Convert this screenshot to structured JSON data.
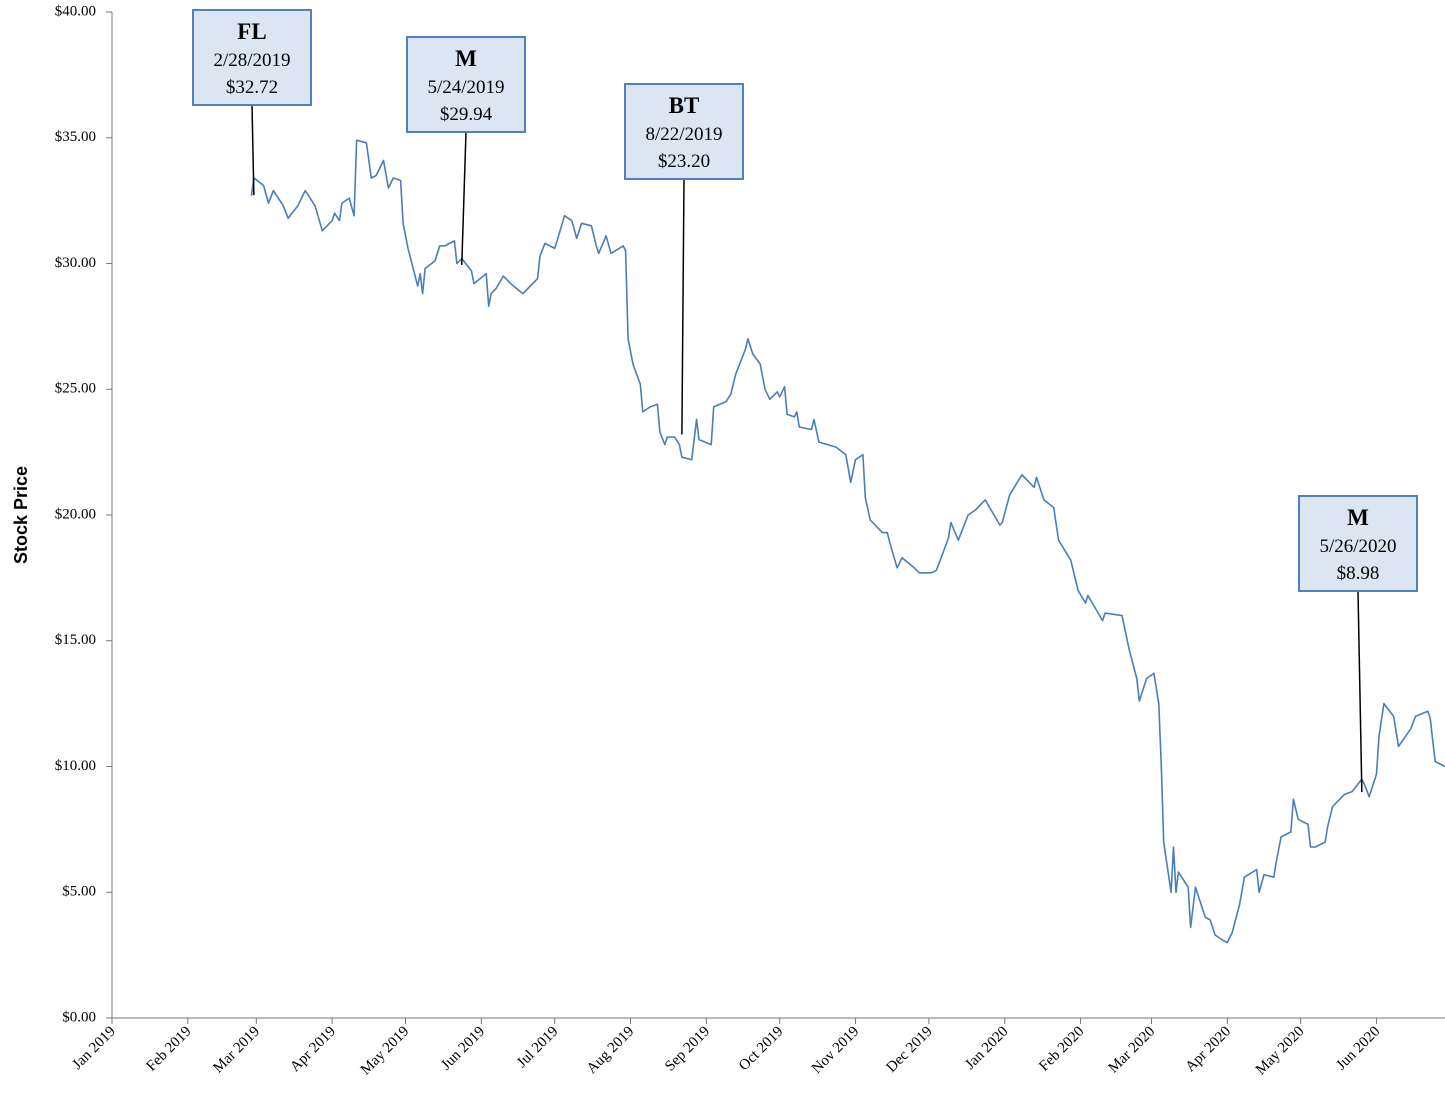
{
  "chart_data": {
    "type": "line",
    "ylabel": "Stock Price",
    "color": "#4a7ebb",
    "xlim": [
      "2019-01-01",
      "2020-06-29"
    ],
    "xticks": [
      {
        "value": "2019-01-01",
        "label": "Jan 2019"
      },
      {
        "value": "2019-02-01",
        "label": "Feb 2019"
      },
      {
        "value": "2019-03-01",
        "label": "Mar 2019"
      },
      {
        "value": "2019-04-01",
        "label": "Apr 2019"
      },
      {
        "value": "2019-05-01",
        "label": "May 2019"
      },
      {
        "value": "2019-06-01",
        "label": "Jun 2019"
      },
      {
        "value": "2019-07-01",
        "label": "Jul 2019"
      },
      {
        "value": "2019-08-01",
        "label": "Aug 2019"
      },
      {
        "value": "2019-09-01",
        "label": "Sep 2019"
      },
      {
        "value": "2019-10-01",
        "label": "Oct 2019"
      },
      {
        "value": "2019-11-01",
        "label": "Nov 2019"
      },
      {
        "value": "2019-12-01",
        "label": "Dec 2019"
      },
      {
        "value": "2020-01-01",
        "label": "Jan 2020"
      },
      {
        "value": "2020-02-01",
        "label": "Feb 2020"
      },
      {
        "value": "2020-03-01",
        "label": "Mar 2020"
      },
      {
        "value": "2020-04-01",
        "label": "Apr 2020"
      },
      {
        "value": "2020-05-01",
        "label": "May 2020"
      },
      {
        "value": "2020-06-01",
        "label": "Jun 2020"
      }
    ],
    "ylim": [
      0,
      40
    ],
    "yticks": [
      {
        "value": 0,
        "label": "$0.00"
      },
      {
        "value": 5,
        "label": "$5.00"
      },
      {
        "value": 10,
        "label": "$10.00"
      },
      {
        "value": 15,
        "label": "$15.00"
      },
      {
        "value": 20,
        "label": "$20.00"
      },
      {
        "value": 25,
        "label": "$25.00"
      },
      {
        "value": 30,
        "label": "$30.00"
      },
      {
        "value": 35,
        "label": "$35.00"
      },
      {
        "value": 40,
        "label": "$40.00"
      }
    ],
    "x": [
      "2019-02-27",
      "2019-02-28",
      "2019-03-04",
      "2019-03-06",
      "2019-03-08",
      "2019-03-12",
      "2019-03-14",
      "2019-03-18",
      "2019-03-21",
      "2019-03-25",
      "2019-03-28",
      "2019-04-01",
      "2019-04-02",
      "2019-04-04",
      "2019-04-05",
      "2019-04-08",
      "2019-04-10",
      "2019-04-11",
      "2019-04-15",
      "2019-04-17",
      "2019-04-19",
      "2019-04-22",
      "2019-04-24",
      "2019-04-26",
      "2019-04-29",
      "2019-04-30",
      "2019-05-02",
      "2019-05-06",
      "2019-05-07",
      "2019-05-08",
      "2019-05-09",
      "2019-05-13",
      "2019-05-15",
      "2019-05-17",
      "2019-05-21",
      "2019-05-22",
      "2019-05-24",
      "2019-05-28",
      "2019-05-29",
      "2019-06-03",
      "2019-06-04",
      "2019-06-05",
      "2019-06-07",
      "2019-06-10",
      "2019-06-13",
      "2019-06-18",
      "2019-06-20",
      "2019-06-24",
      "2019-06-25",
      "2019-06-27",
      "2019-07-01",
      "2019-07-02",
      "2019-07-05",
      "2019-07-08",
      "2019-07-10",
      "2019-07-12",
      "2019-07-16",
      "2019-07-18",
      "2019-07-19",
      "2019-07-22",
      "2019-07-24",
      "2019-07-29",
      "2019-07-30",
      "2019-07-31",
      "2019-08-02",
      "2019-08-05",
      "2019-08-06",
      "2019-08-09",
      "2019-08-12",
      "2019-08-13",
      "2019-08-15",
      "2019-08-16",
      "2019-08-19",
      "2019-08-21",
      "2019-08-22",
      "2019-08-26",
      "2019-08-28",
      "2019-08-29",
      "2019-09-03",
      "2019-09-04",
      "2019-09-09",
      "2019-09-11",
      "2019-09-13",
      "2019-09-17",
      "2019-09-18",
      "2019-09-20",
      "2019-09-23",
      "2019-09-25",
      "2019-09-27",
      "2019-09-30",
      "2019-10-01",
      "2019-10-03",
      "2019-10-04",
      "2019-10-07",
      "2019-10-08",
      "2019-10-09",
      "2019-10-14",
      "2019-10-15",
      "2019-10-17",
      "2019-10-24",
      "2019-10-28",
      "2019-10-30",
      "2019-11-01",
      "2019-11-04",
      "2019-11-05",
      "2019-11-07",
      "2019-11-12",
      "2019-11-14",
      "2019-11-15",
      "2019-11-18",
      "2019-11-20",
      "2019-11-25",
      "2019-11-27",
      "2019-12-02",
      "2019-12-04",
      "2019-12-06",
      "2019-12-09",
      "2019-12-10",
      "2019-12-13",
      "2019-12-17",
      "2019-12-20",
      "2019-12-24",
      "2019-12-30",
      "2019-12-31",
      "2020-01-03",
      "2020-01-08",
      "2020-01-13",
      "2020-01-14",
      "2020-01-17",
      "2020-01-21",
      "2020-01-23",
      "2020-01-28",
      "2020-01-31",
      "2020-02-03",
      "2020-02-04",
      "2020-02-10",
      "2020-02-11",
      "2020-02-18",
      "2020-02-19",
      "2020-02-21",
      "2020-02-24",
      "2020-02-25",
      "2020-02-28",
      "2020-03-02",
      "2020-03-04",
      "2020-03-05",
      "2020-03-06",
      "2020-03-09",
      "2020-03-10",
      "2020-03-11",
      "2020-03-12",
      "2020-03-16",
      "2020-03-17",
      "2020-03-19",
      "2020-03-23",
      "2020-03-25",
      "2020-03-27",
      "2020-03-30",
      "2020-04-01",
      "2020-04-03",
      "2020-04-06",
      "2020-04-08",
      "2020-04-13",
      "2020-04-14",
      "2020-04-16",
      "2020-04-20",
      "2020-04-21",
      "2020-04-23",
      "2020-04-27",
      "2020-04-28",
      "2020-04-30",
      "2020-05-04",
      "2020-05-05",
      "2020-05-07",
      "2020-05-11",
      "2020-05-12",
      "2020-05-14",
      "2020-05-18",
      "2020-05-19",
      "2020-05-22",
      "2020-05-26",
      "2020-05-27",
      "2020-05-29",
      "2020-06-01",
      "2020-06-02",
      "2020-06-04",
      "2020-06-08",
      "2020-06-10",
      "2020-06-15",
      "2020-06-17",
      "2020-06-22",
      "2020-06-23",
      "2020-06-24",
      "2020-06-25",
      "2020-06-29"
    ],
    "values": [
      32.7,
      33.4,
      33.1,
      32.4,
      32.9,
      32.3,
      31.8,
      32.3,
      32.9,
      32.3,
      31.3,
      31.7,
      32.0,
      31.7,
      32.4,
      32.6,
      31.9,
      34.9,
      34.8,
      33.4,
      33.5,
      34.1,
      33.0,
      33.4,
      33.3,
      31.6,
      30.6,
      29.1,
      29.6,
      28.8,
      29.8,
      30.1,
      30.7,
      30.7,
      30.9,
      30.0,
      30.2,
      29.7,
      29.2,
      29.6,
      28.3,
      28.8,
      29.0,
      29.5,
      29.2,
      28.8,
      29.0,
      29.4,
      30.3,
      30.8,
      30.6,
      30.9,
      31.9,
      31.7,
      31.0,
      31.6,
      31.5,
      30.7,
      30.4,
      31.1,
      30.4,
      30.7,
      30.5,
      27.0,
      26.0,
      25.2,
      24.1,
      24.3,
      24.4,
      23.3,
      22.8,
      23.1,
      23.1,
      22.8,
      22.3,
      22.2,
      23.8,
      23.0,
      22.8,
      24.3,
      24.5,
      24.8,
      25.6,
      26.6,
      27.0,
      26.4,
      26.0,
      25.0,
      24.6,
      24.9,
      24.7,
      25.1,
      24.0,
      23.9,
      24.1,
      23.5,
      23.4,
      23.8,
      22.9,
      22.7,
      22.4,
      21.3,
      22.2,
      22.4,
      20.7,
      19.8,
      19.3,
      19.3,
      18.9,
      17.9,
      18.3,
      17.9,
      17.7,
      17.7,
      17.8,
      18.3,
      19.1,
      19.7,
      19.0,
      20.0,
      20.2,
      20.6,
      19.6,
      19.7,
      20.8,
      21.6,
      21.1,
      21.5,
      20.6,
      20.3,
      19.0,
      18.2,
      17.0,
      16.5,
      16.8,
      15.8,
      16.1,
      16.0,
      15.5,
      14.6,
      13.5,
      12.6,
      13.5,
      13.7,
      12.5,
      10.0,
      7.0,
      5.0,
      6.8,
      5.0,
      5.8,
      5.2,
      3.6,
      5.2,
      4.0,
      3.9,
      3.3,
      3.1,
      3.0,
      3.4,
      4.5,
      5.6,
      5.9,
      5.0,
      5.7,
      5.6,
      6.2,
      7.2,
      7.4,
      8.7,
      7.9,
      7.7,
      6.8,
      6.8,
      7.0,
      7.6,
      8.4,
      8.8,
      8.9,
      9.0,
      9.5,
      9.3,
      8.8,
      9.7,
      11.2,
      12.5,
      12.0,
      10.8,
      11.5,
      12.0,
      12.2,
      11.9,
      11.0,
      10.2,
      10.0
    ],
    "annotations": [
      {
        "text": "FL",
        "date": "2/28/2019",
        "x": "2019-02-28",
        "value": 32.72,
        "value_label": "$32.72"
      },
      {
        "text": "M",
        "date": "5/24/2019",
        "x": "2019-05-24",
        "value": 29.94,
        "value_label": "$29.94"
      },
      {
        "text": "BT",
        "date": "8/22/2019",
        "x": "2019-08-22",
        "value": 23.2,
        "value_label": "$23.20"
      },
      {
        "text": "M",
        "date": "5/26/2020",
        "x": "2020-05-26",
        "value": 8.98,
        "value_label": "$8.98"
      }
    ]
  }
}
